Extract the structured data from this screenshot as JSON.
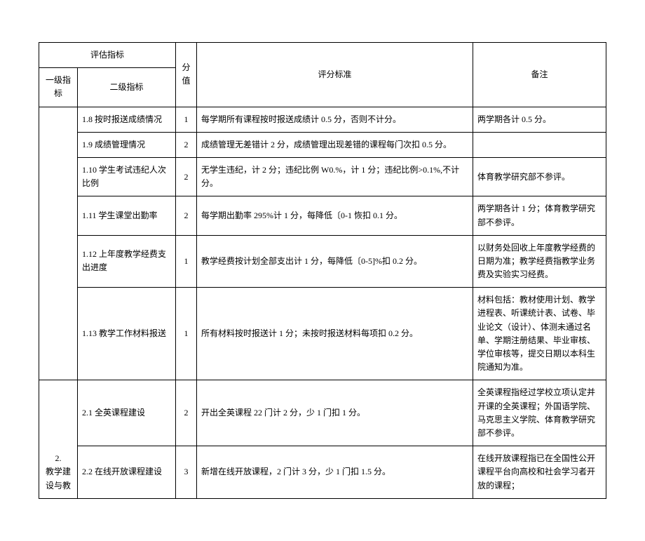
{
  "header": {
    "metric": "评估指标",
    "level1": "一级指标",
    "level2": "二级指标",
    "score": "分值",
    "criteria": "评分标准",
    "remark": "备注"
  },
  "rows": [
    {
      "l1": "",
      "l2": "1.8 按时报送成绩情况",
      "score": "1",
      "criteria": "每学期所有课程按时报送成绩计 0.5 分，否则不计分。",
      "remark": "两学期各计 0.5 分。"
    },
    {
      "l2": "1.9 成绩管理情况",
      "score": "2",
      "criteria": "成绩管理无差错计 2 分，成绩管理出现差错的课程每门次扣 0.5 分。",
      "remark": ""
    },
    {
      "l2": "1.10 学生考试违纪人次比例",
      "score": "2",
      "criteria": "无学生违纪，计 2 分；违纪比例 W0.%，计 1 分；违纪比例>0.1%,不计分。",
      "remark": "体育教学研究部不参评。"
    },
    {
      "l2": "1.11 学生课堂出勤率",
      "score": "2",
      "criteria": "每学期出勤率 295%计 1 分，每降低〔0-1 恢扣 0.1 分。",
      "remark": "两学期各计 1 分；体育教学研究部不参评。"
    },
    {
      "l2": "1.12 上年度教学经费支出进度",
      "score": "1",
      "criteria": "教学经费按计划全部支出计 1 分，每降低〔0-5]%扣 0.2 分。",
      "remark": "以财务处回收上年度教学经费的日期为准；教学经费指教学业务费及实验实习经费。"
    },
    {
      "l2": "1.13 教学工作材料报送",
      "score": "1",
      "criteria": "所有材料按时报送计 1 分；未按时报送材料每项扣 0.2 分。",
      "remark": "材料包括：教材使用计划、教学进程表、听课统计表、试卷、毕业论文（设计）、体测未通过名单、学期注册结果、毕业审核、学位审核等，提交日期以本科生院通知为准。"
    },
    {
      "l1": "2.\n教学建设与教",
      "l2": "2.1 全英课程建设",
      "score": "2",
      "criteria": "开出全英课程 22 门计 2 分，少 1 门扣 1 分。",
      "remark": "全英课程指经过学校立项认定并开课的全英课程；外国语学院、马克思主义学院、体育教学研究部不参评。"
    },
    {
      "l2": "2.2 在线开放课程建设",
      "score": "3",
      "criteria": "新增在线开放课程，2 门计 3 分，少 1 门扣 1.5 分。",
      "remark": "在线开放课程指已在全国性公开课程平台向高校和社会学习者开放的课程；"
    }
  ]
}
